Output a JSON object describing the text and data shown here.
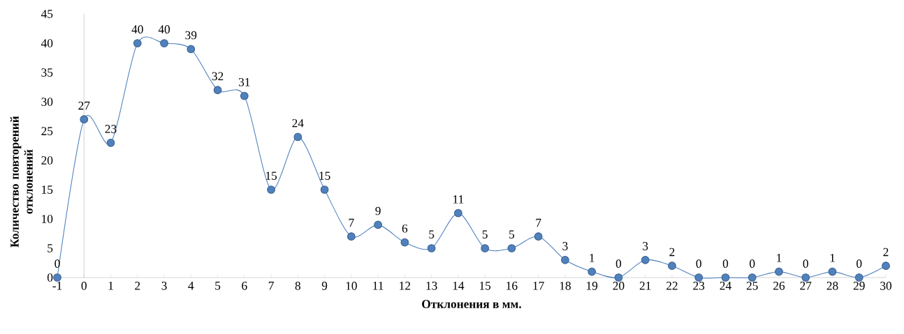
{
  "chart_data": {
    "type": "line",
    "xlabel": "Отклонения в мм.",
    "ylabel": "Количество повторений отклонений",
    "x": [
      -1,
      0,
      1,
      2,
      3,
      4,
      5,
      6,
      7,
      8,
      9,
      10,
      11,
      12,
      13,
      14,
      15,
      16,
      17,
      18,
      19,
      20,
      21,
      22,
      23,
      24,
      25,
      26,
      27,
      28,
      29,
      30
    ],
    "values": [
      0,
      27,
      23,
      40,
      40,
      39,
      32,
      31,
      15,
      24,
      15,
      7,
      9,
      6,
      5,
      11,
      5,
      5,
      7,
      3,
      1,
      0,
      3,
      2,
      0,
      0,
      0,
      1,
      0,
      1,
      0,
      2
    ],
    "color": "#4f81bd",
    "marker": "circle",
    "data_labels": true,
    "xlim": [
      -1,
      30
    ],
    "ylim": [
      0,
      45
    ],
    "xticks": [
      -1,
      0,
      1,
      2,
      3,
      4,
      5,
      6,
      7,
      8,
      9,
      10,
      11,
      12,
      13,
      14,
      15,
      16,
      17,
      18,
      19,
      20,
      21,
      22,
      23,
      24,
      25,
      26,
      27,
      28,
      29,
      30
    ],
    "yticks": [
      0,
      5,
      10,
      15,
      20,
      25,
      30,
      35,
      40,
      45
    ]
  }
}
